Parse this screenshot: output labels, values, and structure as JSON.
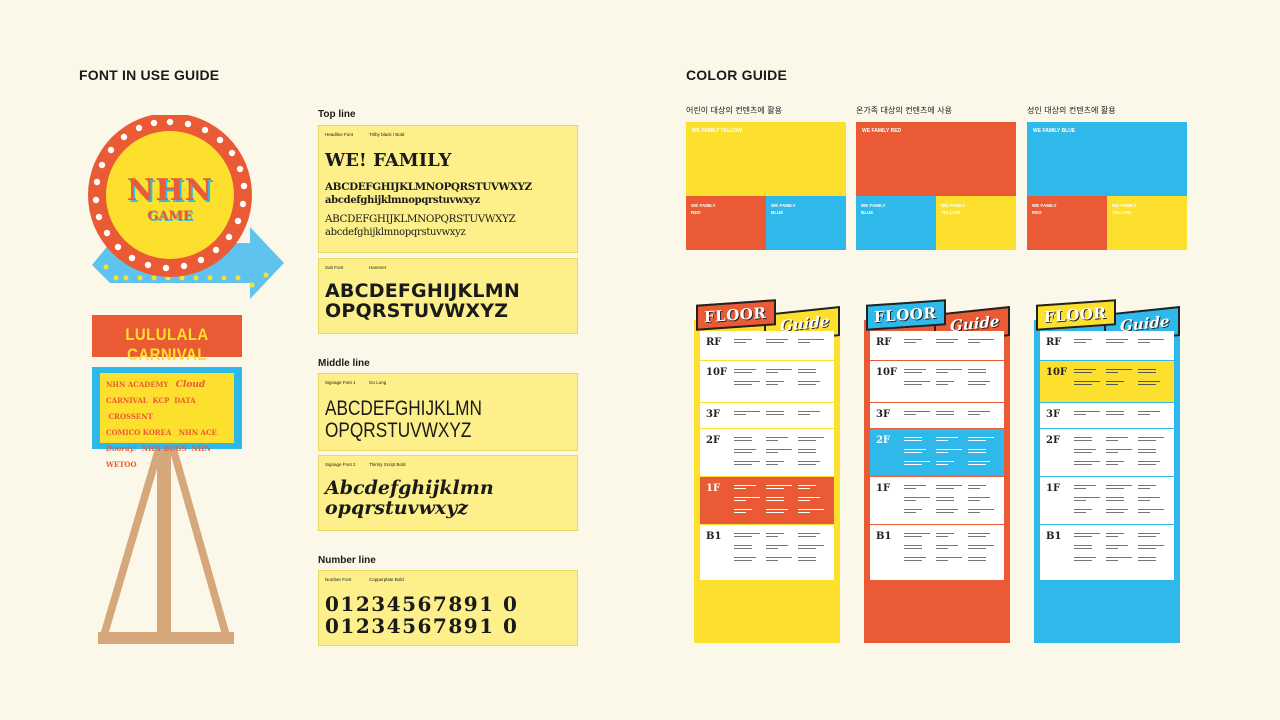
{
  "left": {
    "title": "FONT IN USE GUIDE",
    "sign": {
      "logo_top": "NHN",
      "logo_bottom": "GAME",
      "banner": "LULULALA CARNIVAL",
      "board": [
        [
          "NHN ACADEMY",
          "Cloud"
        ],
        [
          "CARNIVAL",
          "KCP",
          "DATA",
          "CROSSENT"
        ],
        [
          "COMICO KOREA",
          "NHN ACE"
        ],
        [
          "Dooray!",
          "NHN BUGS",
          "NHN WETOO"
        ]
      ]
    }
  },
  "fonts": {
    "top_line": {
      "heading": "Top line",
      "headline": {
        "label": "Headline Font",
        "name": "Trilby black / Bold",
        "sample": "WE! FAMILY",
        "upper": "ABCDEFGHIJKLMNOPQRSTUVWXYZ",
        "lower": "abcdefghijklmnopqrstuvwxyz",
        "upper2": "ABCDEFGHIJKLMNOPQRSTUVWXYZ",
        "lower2": "abcdefghijklmnopqrstuvwxyz"
      },
      "sub": {
        "label": "Sub Font",
        "name": "Hammer",
        "line1": "ABCDEFGHIJKLMN",
        "line2": "OPQRSTUVWXYZ"
      }
    },
    "middle_line": {
      "heading": "Middle line",
      "signage1": {
        "label": "Signage Font 1",
        "name": "Go Long",
        "line1": "ABCDEFGHIJKLMN",
        "line2": "OPQRSTUVWXYZ"
      },
      "signage2": {
        "label": "Signage Font 2",
        "name": "Thirsty Script Bold",
        "line1": "Abcdefghijklmn",
        "line2": "opqrstuvwxyz"
      }
    },
    "number_line": {
      "heading": "Number line",
      "number": {
        "label": "Number Font",
        "name": "Copperplate Bold",
        "line1": "01234567891 0",
        "line2": "01234567891 0"
      }
    }
  },
  "color_guide": {
    "title": "COLOR GUIDE",
    "colors": {
      "yellow": "#fde02e",
      "red": "#ea5a35",
      "blue": "#2fb9ea"
    },
    "sets": [
      {
        "label": "어린이 대상의 컨텐츠에 활용",
        "main": "WE FAMILY YELLOW",
        "sub_left": "WE FAMILY\nRED",
        "sub_right": "WE FAMILY\nBLUE"
      },
      {
        "label": "온가족 대상의 컨텐츠에 사용",
        "main": "WE FAMILY RED",
        "sub_left": "WE FAMILY\nBLUE",
        "sub_right": "WE FAMILY\nYELLOW"
      },
      {
        "label": "성인 대상의 컨텐츠에 활용",
        "main": "WE FAMILY BLUE",
        "sub_left": "WE FAMILY\nRED",
        "sub_right": "WE FAMILY\nYELLOW"
      }
    ]
  },
  "floor_guides": {
    "tag1": "FLOOR",
    "tag2": "Guide",
    "floors": [
      "RF",
      "10F",
      "3F",
      "2F",
      "1F",
      "B1"
    ]
  }
}
